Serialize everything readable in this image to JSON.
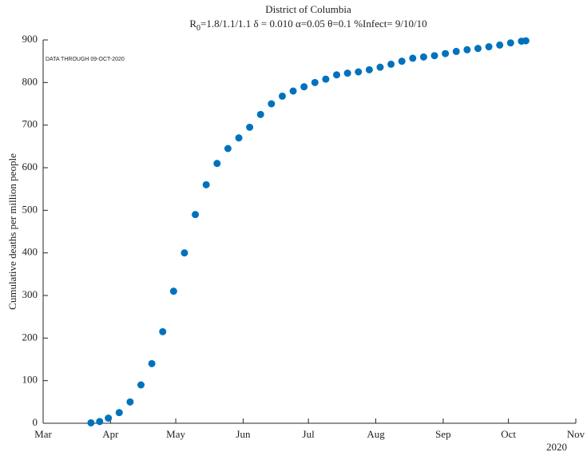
{
  "chart_data": {
    "type": "scatter",
    "title": "District of Columbia",
    "subtitle": [
      "R",
      "0",
      "=1.8/1.1/1.1  δ = 0.010  α=0.05  θ=0.1  %Infect= 9/10/10"
    ],
    "annotation": "DATA THROUGH 09-OCT-2020",
    "ylabel": "Cumulative deaths per million people",
    "xlabel": "2020",
    "x": [
      22,
      26,
      30,
      35,
      40,
      45,
      50,
      55,
      60,
      65,
      70,
      75,
      80,
      85,
      90,
      95,
      100,
      105,
      110,
      115,
      120,
      125,
      130,
      135,
      140,
      145,
      150,
      155,
      160,
      165,
      170,
      175,
      180,
      185,
      190,
      195,
      200,
      205,
      210,
      215,
      220,
      222
    ],
    "series": [
      {
        "color": "#0072bd",
        "values": [
          1,
          4,
          12,
          25,
          50,
          90,
          140,
          215,
          310,
          400,
          490,
          560,
          610,
          645,
          670,
          695,
          725,
          750,
          768,
          780,
          790,
          800,
          808,
          818,
          822,
          825,
          830,
          836,
          843,
          850,
          857,
          860,
          863,
          868,
          873,
          877,
          880,
          884,
          888,
          893,
          897,
          898
        ]
      }
    ],
    "xlim": [
      0,
      245
    ],
    "xticks": [
      {
        "value": 0,
        "label": "Mar"
      },
      {
        "value": 31,
        "label": "Apr"
      },
      {
        "value": 61,
        "label": "May"
      },
      {
        "value": 92,
        "label": "Jun"
      },
      {
        "value": 122,
        "label": "Jul"
      },
      {
        "value": 153,
        "label": "Aug"
      },
      {
        "value": 184,
        "label": "Sep"
      },
      {
        "value": 214,
        "label": "Oct"
      },
      {
        "value": 245,
        "label": "Nov"
      }
    ],
    "ylim": [
      0,
      900
    ],
    "yticks": [
      0,
      100,
      200,
      300,
      400,
      500,
      600,
      700,
      800,
      900
    ]
  }
}
